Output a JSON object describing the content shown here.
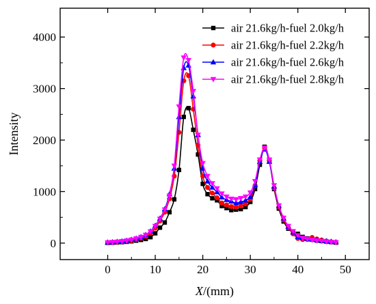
{
  "chart_data": {
    "type": "line",
    "xlabel_italic": "X",
    "xlabel_rest": "/(mm)",
    "ylabel": "Intensity",
    "xlim": [
      -10,
      55
    ],
    "ylim": [
      -320,
      4560
    ],
    "x_ticks": [
      0,
      10,
      20,
      30,
      40,
      50
    ],
    "y_ticks": [
      0,
      1000,
      2000,
      3000,
      4000
    ],
    "legend_position": "top-right",
    "grid": false,
    "series": [
      {
        "name": "air 21.6kg/h-fuel 2.0kg/h",
        "color": "#000000",
        "marker": "square",
        "x": [
          0,
          1,
          2,
          3,
          4,
          5,
          6,
          7,
          8,
          9,
          10,
          11,
          12,
          13,
          14,
          15,
          16,
          17,
          18,
          19,
          20,
          21,
          22,
          23,
          24,
          25,
          26,
          27,
          28,
          29,
          30,
          31,
          32,
          33,
          34,
          35,
          36,
          37,
          38,
          39,
          40,
          41,
          42,
          43,
          44,
          45,
          46,
          47,
          48
        ],
        "y": [
          5,
          8,
          12,
          18,
          25,
          35,
          48,
          62,
          80,
          115,
          190,
          300,
          400,
          600,
          850,
          1420,
          2450,
          2620,
          2200,
          1720,
          1150,
          950,
          870,
          830,
          720,
          680,
          640,
          650,
          660,
          700,
          800,
          1050,
          1520,
          1870,
          1600,
          1050,
          670,
          420,
          280,
          200,
          180,
          120,
          90,
          70,
          50,
          40,
          30,
          20,
          10
        ]
      },
      {
        "name": "air 21.6kg/h-fuel 2.2kg/h",
        "color": "#ff0000",
        "marker": "circle",
        "x": [
          0,
          1,
          2,
          3,
          4,
          5,
          6,
          7,
          8,
          9,
          10,
          11,
          12,
          13,
          14,
          15,
          16,
          17,
          18,
          19,
          20,
          21,
          22,
          23,
          24,
          25,
          26,
          27,
          28,
          29,
          30,
          31,
          32,
          33,
          34,
          35,
          36,
          37,
          38,
          39,
          40,
          41,
          42,
          43,
          44,
          45,
          46,
          47,
          48
        ],
        "y": [
          10,
          15,
          20,
          28,
          38,
          52,
          70,
          95,
          130,
          190,
          290,
          430,
          600,
          860,
          1300,
          2150,
          3150,
          3250,
          2600,
          1900,
          1300,
          1080,
          970,
          880,
          780,
          740,
          710,
          700,
          720,
          760,
          850,
          1120,
          1600,
          1850,
          1600,
          1070,
          700,
          450,
          300,
          180,
          90,
          70,
          70,
          110,
          80,
          60,
          40,
          25,
          15
        ]
      },
      {
        "name": "air 21.6kg/h-fuel 2.6kg/h",
        "color": "#0000ff",
        "marker": "triangle-up",
        "x": [
          0,
          1,
          2,
          3,
          4,
          5,
          6,
          7,
          8,
          9,
          10,
          11,
          12,
          13,
          14,
          15,
          16,
          17,
          18,
          19,
          20,
          21,
          22,
          23,
          24,
          25,
          26,
          27,
          28,
          29,
          30,
          31,
          32,
          33,
          34,
          35,
          36,
          37,
          38,
          39,
          40,
          41,
          42,
          43,
          44,
          45,
          46,
          47,
          48
        ],
        "y": [
          15,
          20,
          28,
          38,
          50,
          68,
          90,
          120,
          160,
          230,
          340,
          480,
          660,
          950,
          1450,
          2450,
          3400,
          3450,
          2850,
          2100,
          1450,
          1200,
          1080,
          990,
          890,
          840,
          810,
          780,
          800,
          830,
          900,
          1130,
          1580,
          1820,
          1580,
          1100,
          720,
          480,
          320,
          210,
          120,
          100,
          80,
          70,
          60,
          50,
          40,
          30,
          20
        ]
      },
      {
        "name": "air 21.6kg/h-fuel 2.8kg/h",
        "color": "#ff00ff",
        "marker": "triangle-down",
        "x": [
          0,
          1,
          2,
          3,
          4,
          5,
          6,
          7,
          8,
          9,
          10,
          11,
          12,
          13,
          14,
          15,
          16,
          17,
          18,
          19,
          20,
          21,
          22,
          23,
          24,
          25,
          26,
          27,
          28,
          29,
          30,
          31,
          32,
          33,
          34,
          35,
          36,
          37,
          38,
          39,
          40,
          41,
          42,
          43,
          44,
          45,
          46,
          47,
          48
        ],
        "y": [
          12,
          18,
          25,
          35,
          48,
          65,
          88,
          118,
          158,
          225,
          330,
          470,
          650,
          920,
          1500,
          2650,
          3600,
          3550,
          2950,
          2100,
          1550,
          1300,
          1160,
          1060,
          960,
          900,
          860,
          850,
          870,
          900,
          980,
          1200,
          1620,
          1850,
          1620,
          1120,
          730,
          490,
          330,
          230,
          150,
          100,
          80,
          60,
          50,
          40,
          30,
          20,
          15
        ]
      }
    ]
  }
}
